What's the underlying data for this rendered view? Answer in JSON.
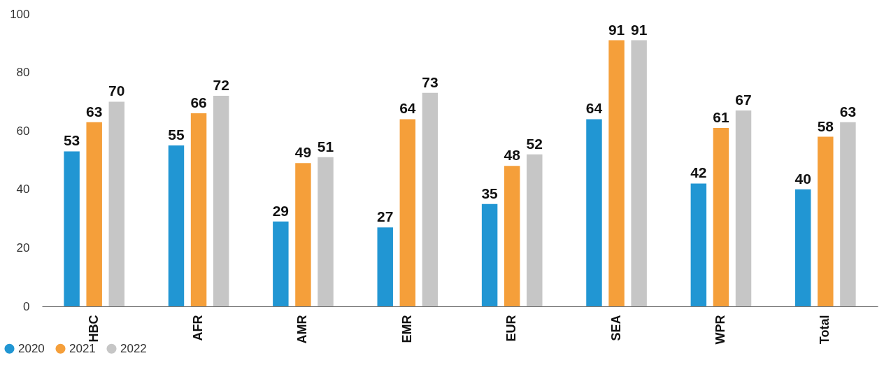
{
  "chart_data": {
    "type": "bar",
    "categories": [
      "HBC",
      "AFR",
      "AMR",
      "EMR",
      "EUR",
      "SEA",
      "WPR",
      "Total"
    ],
    "series": [
      {
        "name": "2020",
        "color": "#2196d3",
        "values": [
          53,
          55,
          29,
          27,
          35,
          64,
          42,
          40
        ]
      },
      {
        "name": "2021",
        "color": "#f59f3a",
        "values": [
          63,
          66,
          49,
          64,
          48,
          91,
          61,
          58
        ]
      },
      {
        "name": "2022",
        "color": "#c6c6c6",
        "values": [
          70,
          72,
          51,
          73,
          52,
          91,
          67,
          63
        ]
      }
    ],
    "ylim": [
      0,
      100
    ],
    "yticks": [
      0,
      20,
      40,
      60,
      80,
      100
    ],
    "grid": false,
    "legend": "bottom left",
    "data_labels": true
  }
}
